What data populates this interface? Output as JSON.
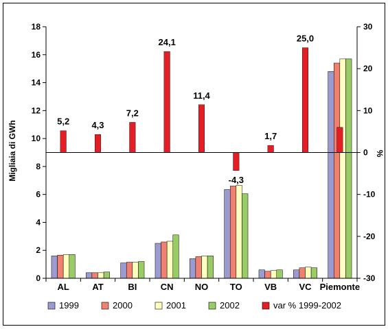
{
  "chart_data": {
    "type": "bar",
    "categories": [
      "AL",
      "AT",
      "BI",
      "CN",
      "NO",
      "TO",
      "VB",
      "VC",
      "Piemonte"
    ],
    "series": [
      {
        "name": "1999",
        "axis": "left",
        "color": "#9b9bd0",
        "values": [
          1.6,
          0.4,
          1.1,
          2.5,
          1.4,
          6.35,
          0.6,
          0.6,
          14.8
        ]
      },
      {
        "name": "2000",
        "axis": "left",
        "color": "#f08070",
        "values": [
          1.65,
          0.4,
          1.15,
          2.6,
          1.55,
          6.6,
          0.5,
          0.75,
          15.4
        ]
      },
      {
        "name": "2001",
        "axis": "left",
        "color": "#ffffc0",
        "values": [
          1.7,
          0.4,
          1.15,
          2.65,
          1.6,
          6.65,
          0.55,
          0.8,
          15.7
        ]
      },
      {
        "name": "2002",
        "axis": "left",
        "color": "#99cc66",
        "values": [
          1.7,
          0.45,
          1.2,
          3.1,
          1.6,
          6.05,
          0.6,
          0.75,
          15.7
        ]
      },
      {
        "name": "var % 1999-2002",
        "axis": "right",
        "color": "#e31e24",
        "values": [
          5.2,
          4.3,
          7.2,
          24.1,
          11.4,
          -4.3,
          1.7,
          25.0,
          6.0
        ]
      }
    ],
    "data_labels": [
      "5,2",
      "4,3",
      "7,2",
      "24,1",
      "11,4",
      "-4,3",
      "1,7",
      "25,0",
      ""
    ],
    "ylabel": "Migliaia di GWh",
    "y2label": "%",
    "y_ticks": [
      "0",
      "2",
      "4",
      "6",
      "8",
      "10",
      "12",
      "14",
      "16",
      "18"
    ],
    "y2_ticks": [
      "-30",
      "-20",
      "-10",
      "0",
      "10",
      "20",
      "30"
    ],
    "ylim": [
      0,
      18
    ],
    "y2lim": [
      -30,
      30
    ],
    "grid": false,
    "legend_position": "bottom",
    "legend": [
      "1999",
      "2000",
      "2001",
      "2002",
      "var % 1999-2002"
    ]
  }
}
